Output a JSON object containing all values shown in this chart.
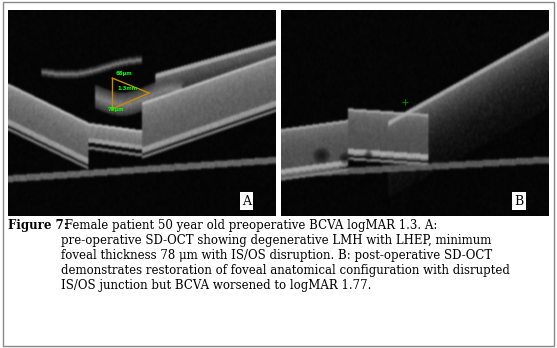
{
  "figure_width": 5.57,
  "figure_height": 3.48,
  "dpi": 100,
  "background_color": "#ffffff",
  "border_color": "#888888",
  "caption_bold": "Figure 7:",
  "caption_normal": " Female patient 50 year old preoperative BCVA logMAR 1.3. A:\npre-operative SD-OCT showing degenerative LMH with LHEP, minimum\nfoveal thickness 78 μm with IS/OS disruption. B: post-operative SD-OCT\ndemonstrates restoration of foveal anatomical configuration with disrupted\nIS/OS junction but BCVA worsened to logMAR 1.77.",
  "label_A": "A",
  "label_B": "B",
  "font_size_caption": 8.5,
  "font_family": "serif"
}
